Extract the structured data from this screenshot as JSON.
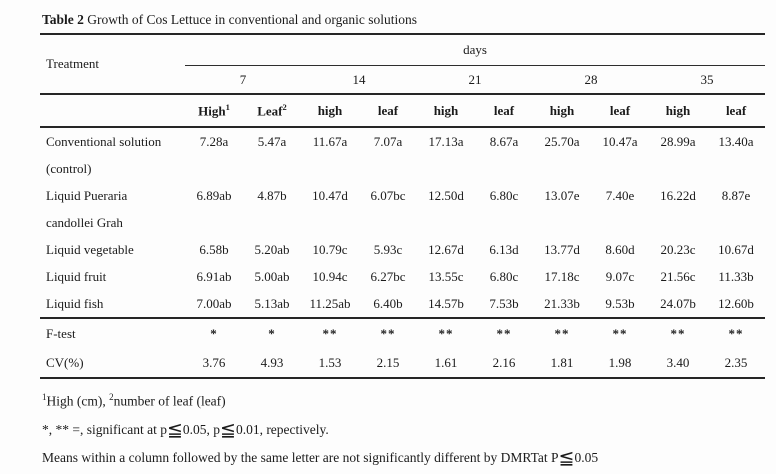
{
  "title": {
    "label": "Table 2",
    "text": " Growth of Cos Lettuce in conventional and organic solutions"
  },
  "table": {
    "treatment_header": "Treatment",
    "days_header": "days",
    "day_groups": [
      "7",
      "14",
      "21",
      "28",
      "35"
    ],
    "col_headers": [
      {
        "label": "High",
        "sup": "1"
      },
      {
        "label": "Leaf",
        "sup": "2"
      },
      {
        "label": "high",
        "sup": ""
      },
      {
        "label": "leaf",
        "sup": ""
      },
      {
        "label": "high",
        "sup": ""
      },
      {
        "label": "leaf",
        "sup": ""
      },
      {
        "label": "high",
        "sup": ""
      },
      {
        "label": "leaf",
        "sup": ""
      },
      {
        "label": "high",
        "sup": ""
      },
      {
        "label": "leaf",
        "sup": ""
      }
    ],
    "rows": [
      {
        "label1": "Conventional solution",
        "label2": "(control)",
        "values": [
          "7.28a",
          "5.47a",
          "11.67a",
          "7.07a",
          "17.13a",
          "8.67a",
          "25.70a",
          "10.47a",
          "28.99a",
          "13.40a"
        ]
      },
      {
        "label1": "Liquid Pueraria",
        "label2": "candollei Grah",
        "values": [
          "6.89ab",
          "4.87b",
          "10.47d",
          "6.07bc",
          "12.50d",
          "6.80c",
          "13.07e",
          "7.40e",
          "16.22d",
          "8.87e"
        ]
      },
      {
        "label1": "Liquid vegetable",
        "label2": "",
        "values": [
          "6.58b",
          "5.20ab",
          "10.79c",
          "5.93c",
          "12.67d",
          "6.13d",
          "13.77d",
          "8.60d",
          "20.23c",
          "10.67d"
        ]
      },
      {
        "label1": "Liquid fruit",
        "label2": "",
        "values": [
          "6.91ab",
          "5.00ab",
          "10.94c",
          "6.27bc",
          "13.55c",
          "6.80c",
          "17.18c",
          "9.07c",
          "21.56c",
          "11.33b"
        ]
      },
      {
        "label1": "Liquid fish",
        "label2": "",
        "values": [
          "7.00ab",
          "5.13ab",
          "11.25ab",
          "6.40b",
          "14.57b",
          "7.53b",
          "21.33b",
          "9.53b",
          "24.07b",
          "12.60b"
        ]
      }
    ],
    "f_test": {
      "label": "F-test",
      "values": [
        "*",
        "*",
        "**",
        "**",
        "**",
        "**",
        "**",
        "**",
        "**",
        "**"
      ]
    },
    "cv": {
      "label": "CV(%)",
      "values": [
        "3.76",
        "4.93",
        "1.53",
        "2.15",
        "1.61",
        "2.16",
        "1.81",
        "1.98",
        "3.40",
        "2.35"
      ]
    }
  },
  "footnotes": {
    "fn1": {
      "sup1": "1",
      "t1": "High (cm), ",
      "sup2": "2",
      "t2": "number of leaf (leaf)"
    },
    "fn2": {
      "t1": "*, ** =, significant at p",
      "leq1": "≦",
      "t2": "0.05, p",
      "leq2": "≦",
      "t3": "0.01, repectively."
    },
    "fn3": {
      "t1": "Means within a column followed by the same letter are not significantly different by DMRTat P",
      "leq": "≦",
      "t2": "0.05"
    }
  }
}
